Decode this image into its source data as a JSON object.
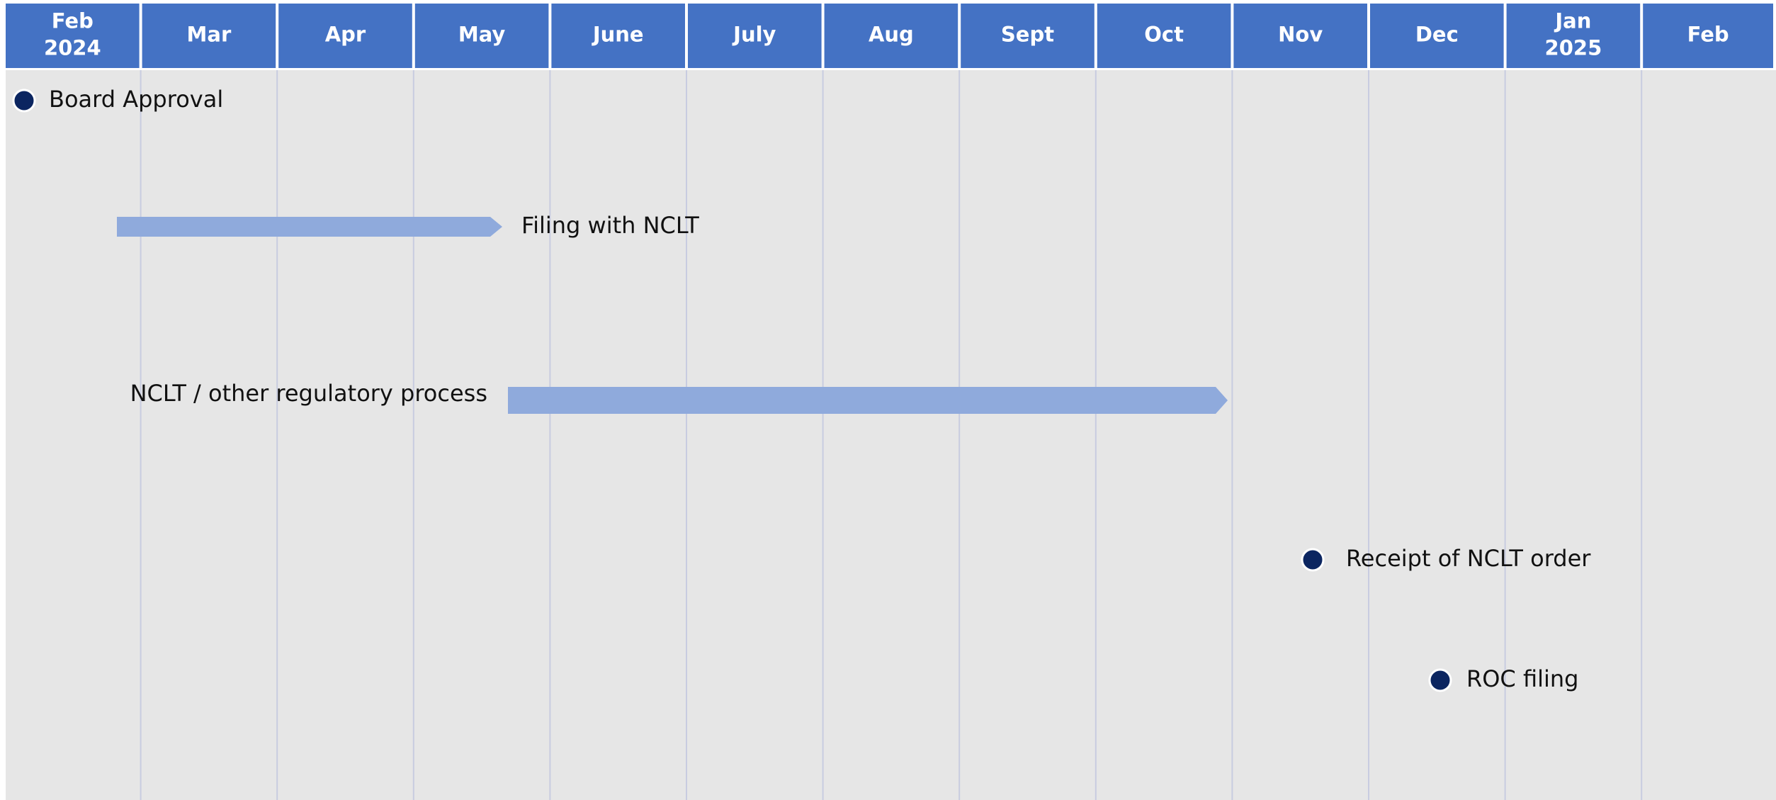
{
  "months": [
    [
      "Feb",
      "2024"
    ],
    [
      "Mar"
    ],
    [
      "Apr"
    ],
    [
      "May"
    ],
    [
      "June"
    ],
    [
      "July"
    ],
    [
      "Aug"
    ],
    [
      "Sept"
    ],
    [
      "Oct"
    ],
    [
      "Nov"
    ],
    [
      "Dec"
    ],
    [
      "Jan",
      "2025"
    ],
    [
      "Feb"
    ]
  ],
  "items": [
    {
      "kind": "milestone",
      "label": "Board Approval"
    },
    {
      "kind": "bar",
      "label": "Filing with NCLT"
    },
    {
      "kind": "bar",
      "label": "NCLT / other regulatory process"
    },
    {
      "kind": "milestone",
      "label": "Receipt of NCLT order"
    },
    {
      "kind": "milestone",
      "label": "ROC filing"
    }
  ]
}
